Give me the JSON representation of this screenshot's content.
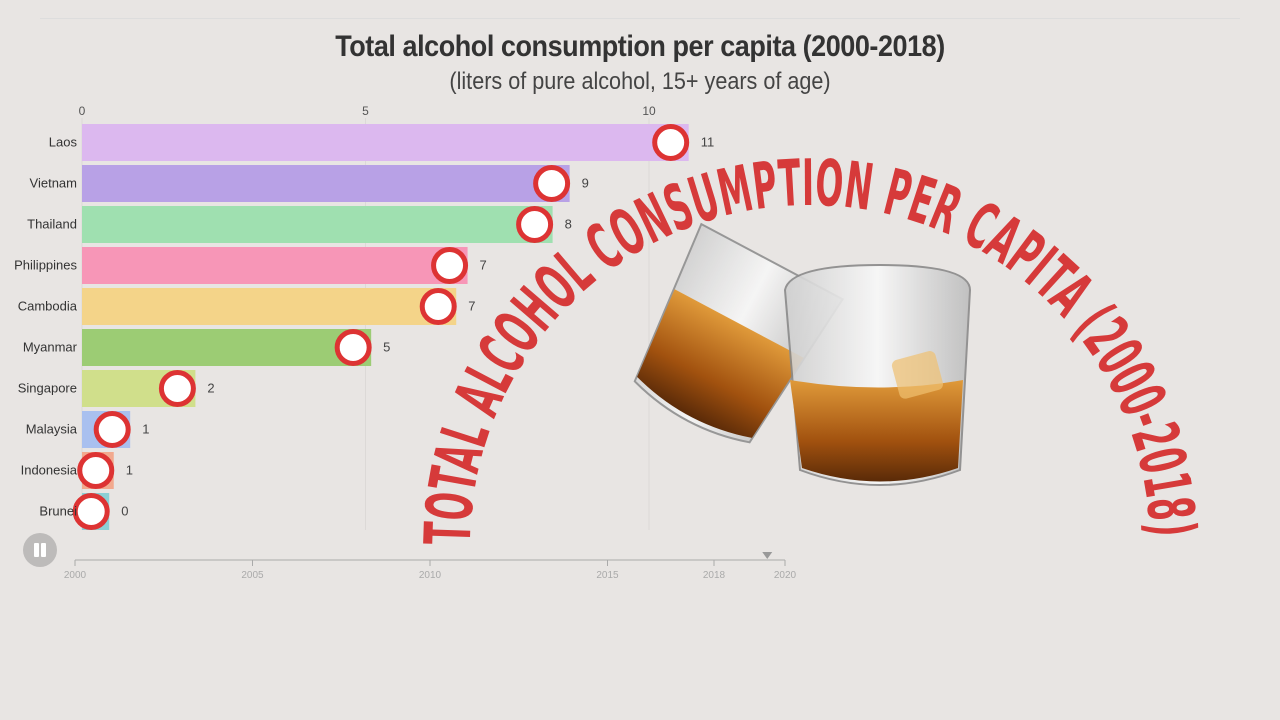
{
  "header": {
    "title": "Total alcohol consumption per capita (2000-2018)",
    "subtitle": "(liters of pure alcohol, 15+ years of age)"
  },
  "overlay_text": "TOTAL ALCOHOL CONSUMPTION PER CAPITA (2000-2018)",
  "chart_data": {
    "type": "bar",
    "orientation": "horizontal",
    "categories": [
      "Laos",
      "Vietnam",
      "Thailand",
      "Philippines",
      "Cambodia",
      "Myanmar",
      "Singapore",
      "Malaysia",
      "Indonesia",
      "Brunei"
    ],
    "values": [
      10.7,
      8.6,
      8.3,
      6.8,
      6.6,
      5.1,
      2.0,
      0.85,
      0.56,
      0.48
    ],
    "value_labels": [
      "11",
      "9",
      "8",
      "7",
      "7",
      "5",
      "2",
      "1",
      "1",
      "0"
    ],
    "colors": [
      "#dcb8ef",
      "#b8a1e6",
      "#9fe0b0",
      "#f796b7",
      "#f4d489",
      "#9ccc74",
      "#d0df8b",
      "#a9c0ef",
      "#f2a98e",
      "#8ccfd4"
    ],
    "xlim": [
      0,
      11.5
    ],
    "x_ticks": [
      "0",
      "5",
      "10"
    ],
    "grid": true
  },
  "timeline": {
    "ticks": [
      "2000",
      "2005",
      "2010",
      "2015",
      "2018",
      "2020"
    ],
    "current_year": 2019.5
  },
  "controls": {
    "pause_icon": "pause-icon"
  },
  "image": {
    "icon": "whiskey-glasses-icon"
  }
}
